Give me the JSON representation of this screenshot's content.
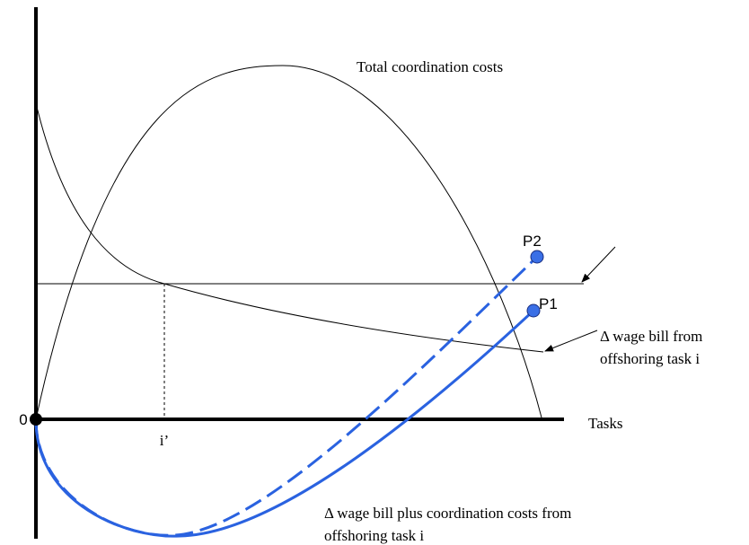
{
  "labels": {
    "total_coordination_costs": "Total coordination costs",
    "origin": "0",
    "i_prime": "i’",
    "tasks": "Tasks",
    "p1": "P1",
    "p2": "P2",
    "wage_bill": [
      "Δ wage bill from",
      "offshoring task i"
    ],
    "wage_bill_plus": [
      "Δ wage bill plus coordination costs from",
      "offshoring task i"
    ]
  }
}
